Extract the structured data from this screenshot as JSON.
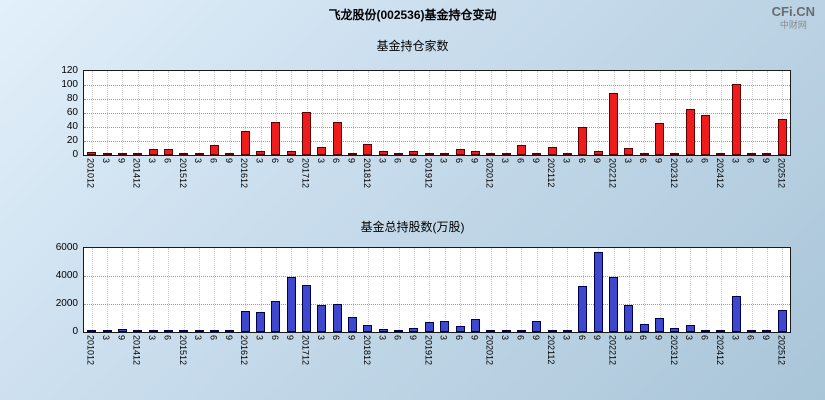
{
  "page": {
    "title": "飞龙股份(002536)基金持仓变动",
    "watermark": {
      "brand": "CFi.CN",
      "site": "中财网"
    }
  },
  "chart_data": [
    {
      "type": "bar",
      "title": "基金持仓家数",
      "bar_color": "#ee1c1c",
      "bar_border_color": "#5e0000",
      "ylim": [
        0,
        120
      ],
      "yticks": [
        0,
        20,
        40,
        60,
        80,
        100,
        120
      ],
      "grid": true,
      "legend": "none",
      "categories": [
        "201012",
        "3",
        "9",
        "201412",
        "3",
        "6",
        "201512",
        "3",
        "6",
        "9",
        "201612",
        "3",
        "6",
        "9",
        "201712",
        "3",
        "6",
        "9",
        "201812",
        "3",
        "6",
        "9",
        "201912",
        "3",
        "6",
        "9",
        "202012",
        "3",
        "6",
        "9",
        "202112",
        "3",
        "6",
        "9",
        "202212",
        "3",
        "6",
        "9",
        "202312",
        "3",
        "6",
        "202412",
        "3",
        "6",
        "9",
        "202512"
      ],
      "values": [
        4,
        2,
        1,
        2,
        8,
        8,
        2,
        1,
        14,
        2,
        34,
        5,
        47,
        5,
        62,
        12,
        47,
        3,
        15,
        5,
        2,
        6,
        3,
        2,
        8,
        6,
        3,
        2,
        14,
        3,
        12,
        3,
        40,
        5,
        88,
        10,
        3,
        45,
        3,
        66,
        57,
        3,
        102,
        2,
        3,
        52
      ]
    },
    {
      "type": "bar",
      "title": "基金总持股数(万股)",
      "bar_color": "#3f48cc",
      "bar_border_color": "#000050",
      "ylim": [
        0,
        6000
      ],
      "yticks": [
        0,
        2000,
        4000,
        6000
      ],
      "grid": true,
      "legend": "none",
      "categories": [
        "201012",
        "3",
        "9",
        "201412",
        "3",
        "6",
        "201512",
        "3",
        "6",
        "9",
        "201612",
        "3",
        "6",
        "9",
        "201712",
        "3",
        "6",
        "9",
        "201812",
        "3",
        "6",
        "9",
        "201912",
        "3",
        "6",
        "9",
        "202012",
        "3",
        "6",
        "9",
        "202112",
        "3",
        "6",
        "9",
        "202212",
        "3",
        "6",
        "9",
        "202312",
        "3",
        "6",
        "202412",
        "3",
        "6",
        "9",
        "202512"
      ],
      "values": [
        150,
        50,
        230,
        80,
        60,
        90,
        40,
        30,
        160,
        120,
        1500,
        1450,
        2200,
        3950,
        3350,
        1900,
        2000,
        1050,
        500,
        180,
        80,
        300,
        700,
        800,
        400,
        900,
        120,
        60,
        120,
        800,
        150,
        100,
        3250,
        5700,
        3900,
        1900,
        600,
        1000,
        300,
        480,
        120,
        100,
        2600,
        120,
        100,
        1600
      ]
    }
  ]
}
